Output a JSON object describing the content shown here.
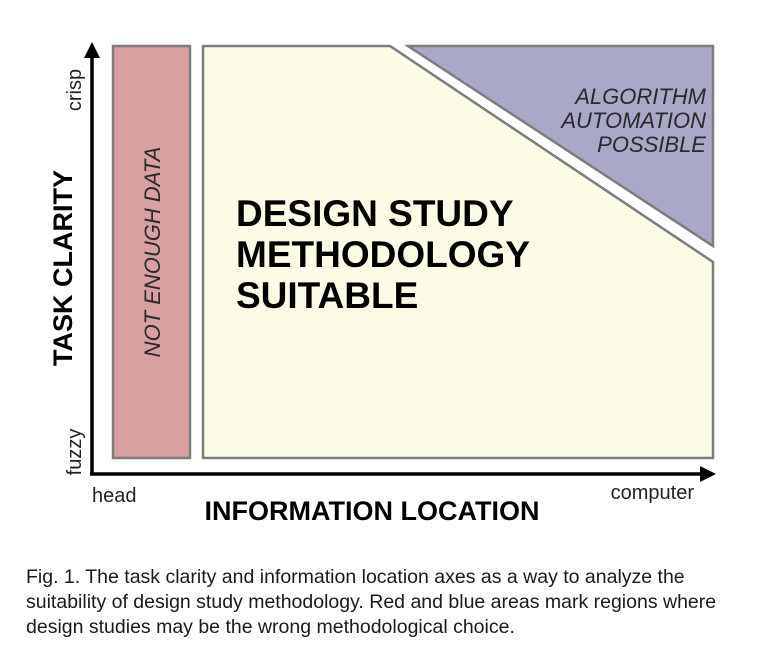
{
  "diagram": {
    "y_axis": {
      "title": "TASK CLARITY",
      "tick_high": "crisp",
      "tick_low": "fuzzy"
    },
    "x_axis": {
      "title": "INFORMATION LOCATION",
      "tick_low": "head",
      "tick_high": "computer"
    },
    "regions": {
      "not_enough_data": {
        "label": "NOT ENOUGH DATA",
        "color": "#d9a0a2"
      },
      "design_study": {
        "lines": [
          "DESIGN STUDY",
          "METHODOLOGY",
          "SUITABLE"
        ],
        "color": "#fbfbe6"
      },
      "algorithm": {
        "lines": [
          "ALGORITHM",
          "AUTOMATION",
          "POSSIBLE"
        ],
        "color": "#a9a8c8"
      }
    },
    "outline_color": "#7d7d7d"
  },
  "caption": "Fig. 1. The task clarity and information location axes as a way to analyze the suitability of design study methodology.  Red and blue areas mark regions where design studies may be the wrong methodological choice."
}
